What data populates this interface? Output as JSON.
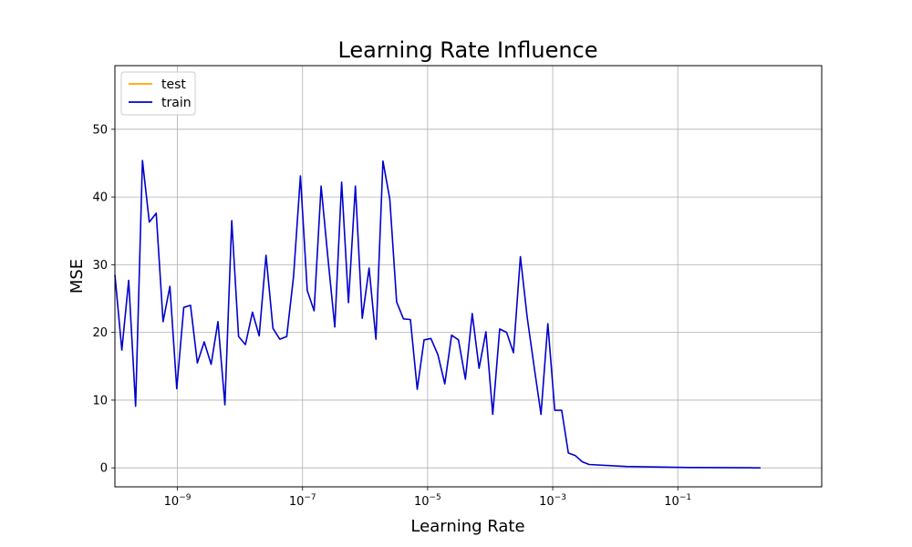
{
  "chart_data": {
    "type": "line",
    "title": "Learning Rate Influence",
    "xlabel": "Learning Rate",
    "ylabel": "MSE",
    "xscale": "log",
    "xlim": [
      1e-10,
      20
    ],
    "ylim": [
      -2.8,
      59.4
    ],
    "grid": true,
    "legend_position": "top-left",
    "x_ticks": [
      {
        "value": 1e-09,
        "mantissa": "10",
        "exp": "−9"
      },
      {
        "value": 1e-07,
        "mantissa": "10",
        "exp": "−7"
      },
      {
        "value": 1e-05,
        "mantissa": "10",
        "exp": "−5"
      },
      {
        "value": 0.001,
        "mantissa": "10",
        "exp": "−3"
      },
      {
        "value": 0.1,
        "mantissa": "10",
        "exp": "−1"
      }
    ],
    "y_ticks": [
      0,
      10,
      20,
      30,
      40,
      50
    ],
    "series": [
      {
        "name": "test",
        "color": "#ffa500",
        "x": [],
        "y": []
      },
      {
        "name": "train",
        "color": "#0000cd",
        "x": [
          1e-10,
          1.29e-10,
          1.66e-10,
          2.14e-10,
          2.76e-10,
          3.55e-10,
          4.57e-10,
          5.88e-10,
          7.57e-10,
          9.75e-10,
          1.26e-09,
          1.62e-09,
          2.08e-09,
          2.68e-09,
          3.45e-09,
          4.45e-09,
          5.73e-09,
          7.38e-09,
          9.5e-09,
          1.22e-08,
          1.58e-08,
          2.03e-08,
          2.61e-08,
          3.36e-08,
          4.33e-08,
          5.58e-08,
          7.18e-08,
          9.25e-08,
          1.19e-07,
          1.53e-07,
          1.98e-07,
          2.54e-07,
          3.28e-07,
          4.22e-07,
          5.43e-07,
          7e-07,
          9.01e-07,
          1.16e-06,
          1.49e-06,
          1.93e-06,
          2.48e-06,
          3.19e-06,
          4.11e-06,
          5.3e-06,
          6.82e-06,
          8.79e-06,
          1.13e-05,
          1.46e-05,
          1.88e-05,
          2.42e-05,
          3.11e-05,
          4.01e-05,
          5.16e-05,
          6.65e-05,
          8.56e-05,
          0.00011,
          0.000142,
          0.000183,
          0.000236,
          0.000304,
          0.000391,
          0.000504,
          0.000649,
          0.000836,
          0.00108,
          0.00139,
          0.00178,
          0.0023,
          0.00296,
          0.00381,
          0.015,
          0.15,
          1.5,
          1.63,
          2.1
        ],
        "y": [
          28.5,
          17.4,
          27.7,
          9.1,
          45.4,
          36.3,
          37.6,
          21.6,
          26.8,
          11.7,
          23.7,
          24.0,
          15.5,
          18.6,
          15.3,
          21.6,
          9.3,
          36.5,
          19.4,
          18.2,
          23.0,
          19.5,
          31.4,
          20.6,
          19.0,
          19.4,
          28.3,
          43.1,
          26.2,
          23.2,
          41.6,
          31.1,
          20.8,
          42.2,
          24.4,
          41.6,
          22.1,
          29.5,
          19.0,
          45.3,
          39.7,
          24.5,
          22.0,
          21.9,
          11.6,
          18.9,
          19.1,
          16.7,
          12.4,
          19.6,
          18.9,
          13.1,
          22.8,
          14.7,
          20.1,
          7.9,
          20.5,
          20.0,
          17.0,
          31.2,
          22.2,
          15.0,
          7.9,
          21.3,
          8.5,
          8.5,
          2.2,
          1.8,
          0.9,
          0.5,
          0.2,
          0.05,
          0.02,
          0.0,
          0.0
        ]
      }
    ]
  }
}
